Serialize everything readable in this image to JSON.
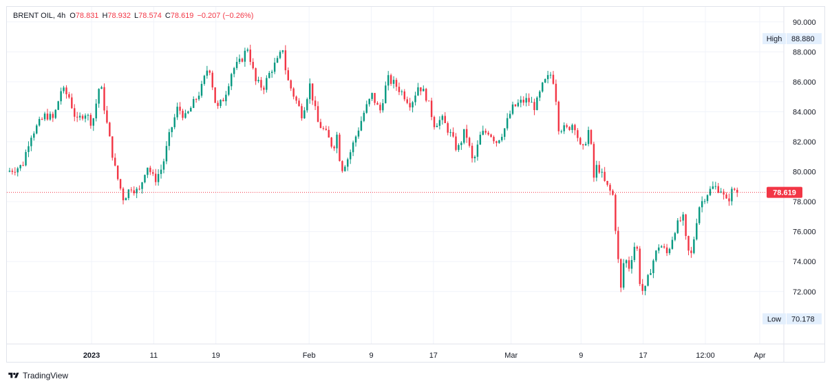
{
  "legend": {
    "symbol": "BRENT OIL, 4h",
    "open_label": "O",
    "open": "78.831",
    "high_label": "H",
    "high": "78.932",
    "low_label": "L",
    "low": "78.574",
    "close_label": "C",
    "close": "78.619",
    "change": "−0.207 (−0.26%)"
  },
  "markers": {
    "high_label": "High",
    "high_value": "88.880",
    "low_label": "Low",
    "low_value": "70.178",
    "last_value": "78.619"
  },
  "brand": "TradingView",
  "colors": {
    "up": "#089981",
    "down": "#f23645",
    "grid": "#f0f3fa",
    "text": "#131722",
    "badge": "#e3effd"
  },
  "chart_data": {
    "type": "candlestick",
    "interval": "4h",
    "ylim": [
      68.5,
      91.0
    ],
    "y_ticks": [
      "90.000",
      "88.000",
      "86.000",
      "84.000",
      "82.000",
      "80.000",
      "78.000",
      "76.000",
      "74.000",
      "72.000"
    ],
    "x_ticks": [
      {
        "label": "2023",
        "bold": true,
        "t": 0.109
      },
      {
        "label": "11",
        "bold": false,
        "t": 0.189
      },
      {
        "label": "19",
        "bold": false,
        "t": 0.269
      },
      {
        "label": "Feb",
        "bold": false,
        "t": 0.389
      },
      {
        "label": "9",
        "bold": false,
        "t": 0.469
      },
      {
        "label": "17",
        "bold": false,
        "t": 0.549
      },
      {
        "label": "Mar",
        "bold": false,
        "t": 0.649
      },
      {
        "label": "9",
        "bold": false,
        "t": 0.739
      },
      {
        "label": "17",
        "bold": false,
        "t": 0.819
      },
      {
        "label": "12:00",
        "bold": false,
        "t": 0.899
      },
      {
        "label": "Apr",
        "bold": false,
        "t": 0.969
      }
    ],
    "last_price": 78.619,
    "period_high": 88.88,
    "period_low": 70.178,
    "close_path": [
      [
        0.0,
        80.0
      ],
      [
        0.02,
        80.4
      ],
      [
        0.03,
        82.4
      ],
      [
        0.05,
        83.8
      ],
      [
        0.06,
        83.5
      ],
      [
        0.07,
        85.5
      ],
      [
        0.08,
        85.0
      ],
      [
        0.09,
        83.3
      ],
      [
        0.1,
        84.0
      ],
      [
        0.11,
        83.2
      ],
      [
        0.12,
        86.0
      ],
      [
        0.13,
        82.8
      ],
      [
        0.14,
        80.0
      ],
      [
        0.15,
        78.2
      ],
      [
        0.16,
        79.0
      ],
      [
        0.17,
        78.6
      ],
      [
        0.18,
        80.5
      ],
      [
        0.19,
        79.4
      ],
      [
        0.2,
        80.3
      ],
      [
        0.21,
        82.6
      ],
      [
        0.22,
        84.3
      ],
      [
        0.23,
        83.6
      ],
      [
        0.25,
        85.5
      ],
      [
        0.26,
        87.2
      ],
      [
        0.27,
        84.1
      ],
      [
        0.28,
        85.0
      ],
      [
        0.29,
        86.8
      ],
      [
        0.3,
        87.3
      ],
      [
        0.31,
        88.3
      ],
      [
        0.32,
        86.0
      ],
      [
        0.33,
        85.6
      ],
      [
        0.34,
        86.8
      ],
      [
        0.35,
        87.5
      ],
      [
        0.355,
        88.3
      ],
      [
        0.36,
        86.3
      ],
      [
        0.37,
        85.0
      ],
      [
        0.38,
        83.8
      ],
      [
        0.39,
        85.8
      ],
      [
        0.4,
        83.3
      ],
      [
        0.41,
        82.6
      ],
      [
        0.42,
        81.6
      ],
      [
        0.425,
        82.5
      ],
      [
        0.43,
        80.1
      ],
      [
        0.44,
        81.0
      ],
      [
        0.45,
        82.5
      ],
      [
        0.46,
        84.0
      ],
      [
        0.47,
        85.1
      ],
      [
        0.48,
        84.0
      ],
      [
        0.49,
        86.2
      ],
      [
        0.5,
        85.8
      ],
      [
        0.51,
        85.2
      ],
      [
        0.52,
        84.5
      ],
      [
        0.53,
        85.8
      ],
      [
        0.54,
        85.0
      ],
      [
        0.55,
        83.2
      ],
      [
        0.56,
        83.5
      ],
      [
        0.57,
        82.6
      ],
      [
        0.58,
        81.4
      ],
      [
        0.59,
        82.8
      ],
      [
        0.6,
        80.5
      ],
      [
        0.61,
        82.5
      ],
      [
        0.62,
        82.7
      ],
      [
        0.63,
        82.0
      ],
      [
        0.64,
        82.8
      ],
      [
        0.65,
        84.2
      ],
      [
        0.66,
        84.6
      ],
      [
        0.67,
        84.8
      ],
      [
        0.68,
        84.3
      ],
      [
        0.69,
        85.8
      ],
      [
        0.7,
        86.5
      ],
      [
        0.705,
        85.9
      ],
      [
        0.71,
        83.0
      ],
      [
        0.72,
        82.8
      ],
      [
        0.73,
        83.3
      ],
      [
        0.74,
        81.2
      ],
      [
        0.75,
        83.0
      ],
      [
        0.755,
        79.5
      ],
      [
        0.76,
        80.5
      ],
      [
        0.77,
        79.2
      ],
      [
        0.78,
        78.4
      ],
      [
        0.785,
        75.2
      ],
      [
        0.79,
        72.0
      ],
      [
        0.795,
        74.5
      ],
      [
        0.8,
        73.5
      ],
      [
        0.81,
        75.5
      ],
      [
        0.815,
        72.5
      ],
      [
        0.82,
        71.8
      ],
      [
        0.83,
        73.8
      ],
      [
        0.84,
        75.2
      ],
      [
        0.85,
        74.5
      ],
      [
        0.86,
        76.2
      ],
      [
        0.87,
        77.0
      ],
      [
        0.875,
        75.0
      ],
      [
        0.88,
        74.2
      ],
      [
        0.885,
        75.8
      ],
      [
        0.89,
        77.6
      ],
      [
        0.9,
        78.5
      ],
      [
        0.91,
        79.0
      ],
      [
        0.92,
        78.8
      ],
      [
        0.925,
        77.9
      ],
      [
        0.93,
        78.3
      ],
      [
        0.935,
        78.9
      ],
      [
        0.94,
        78.619
      ]
    ]
  }
}
